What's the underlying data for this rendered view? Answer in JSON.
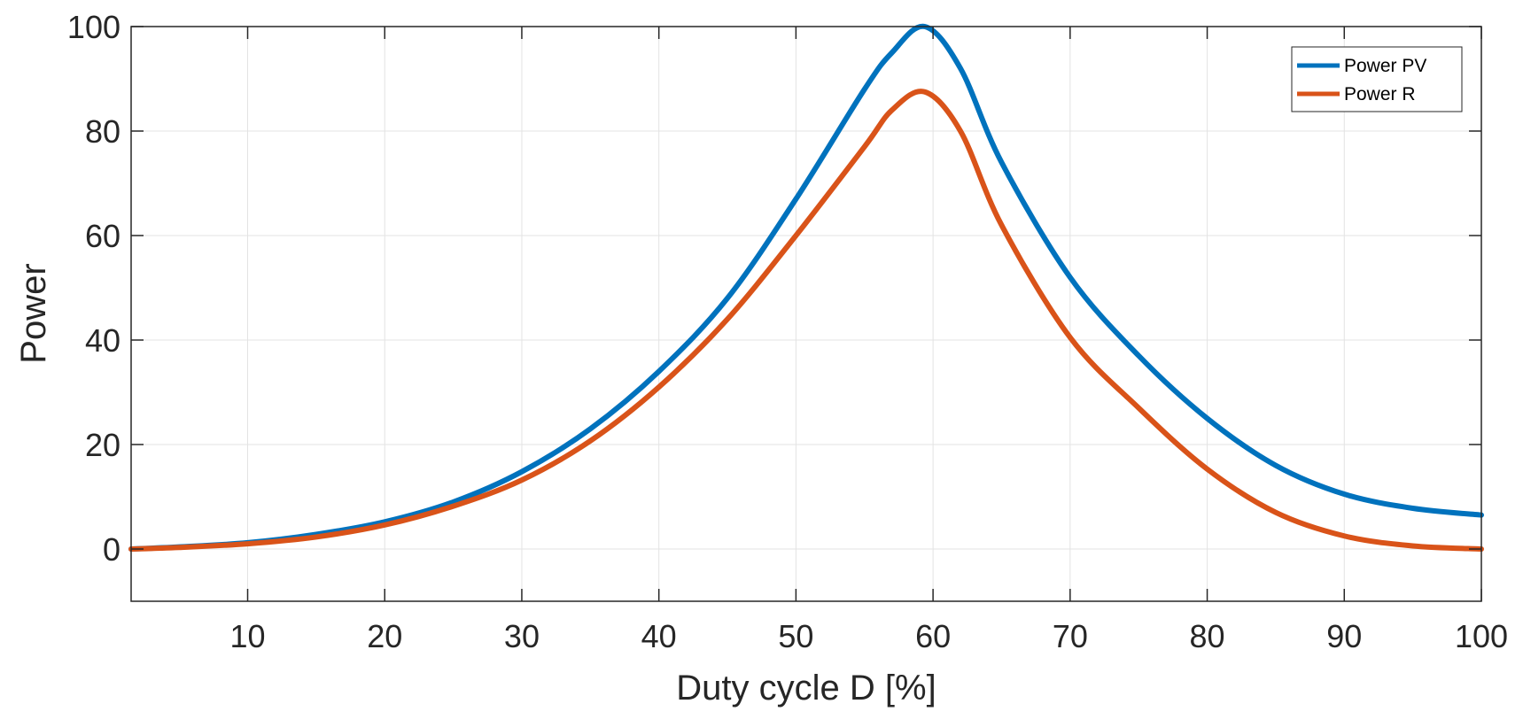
{
  "chart_data": {
    "type": "line",
    "title": "",
    "xlabel": "Duty cycle D [%]",
    "ylabel": "Power",
    "xlim": [
      1.5,
      100
    ],
    "ylim": [
      -10,
      100
    ],
    "xticks": [
      10,
      20,
      30,
      40,
      50,
      60,
      70,
      80,
      90,
      100
    ],
    "yticks": [
      0,
      20,
      40,
      60,
      80,
      100
    ],
    "grid": true,
    "legend_position": "top-right",
    "series": [
      {
        "name": "Power PV",
        "color": "#0072BD",
        "x": [
          1.5,
          5,
          10,
          15,
          20,
          25,
          30,
          35,
          40,
          45,
          50,
          55,
          57,
          59.4,
          62,
          65,
          70,
          75,
          80,
          85,
          90,
          95,
          100
        ],
        "y": [
          0,
          0.4,
          1.2,
          2.8,
          5.2,
          9,
          14.8,
          23,
          34,
          48,
          67,
          88,
          95,
          100,
          92,
          74,
          52,
          37,
          25,
          16,
          10.5,
          7.8,
          6.5
        ]
      },
      {
        "name": "Power R",
        "color": "#D95319",
        "x": [
          1.5,
          5,
          10,
          15,
          20,
          25,
          30,
          35,
          40,
          45,
          50,
          55,
          57,
          59.4,
          62,
          65,
          70,
          75,
          80,
          85,
          90,
          95,
          100
        ],
        "y": [
          0,
          0.3,
          1,
          2.3,
          4.6,
          8.2,
          13.2,
          20.7,
          31,
          44,
          60,
          77,
          84,
          87.5,
          80,
          62,
          40.5,
          27,
          15.3,
          7,
          2.5,
          0.6,
          0
        ]
      }
    ]
  }
}
